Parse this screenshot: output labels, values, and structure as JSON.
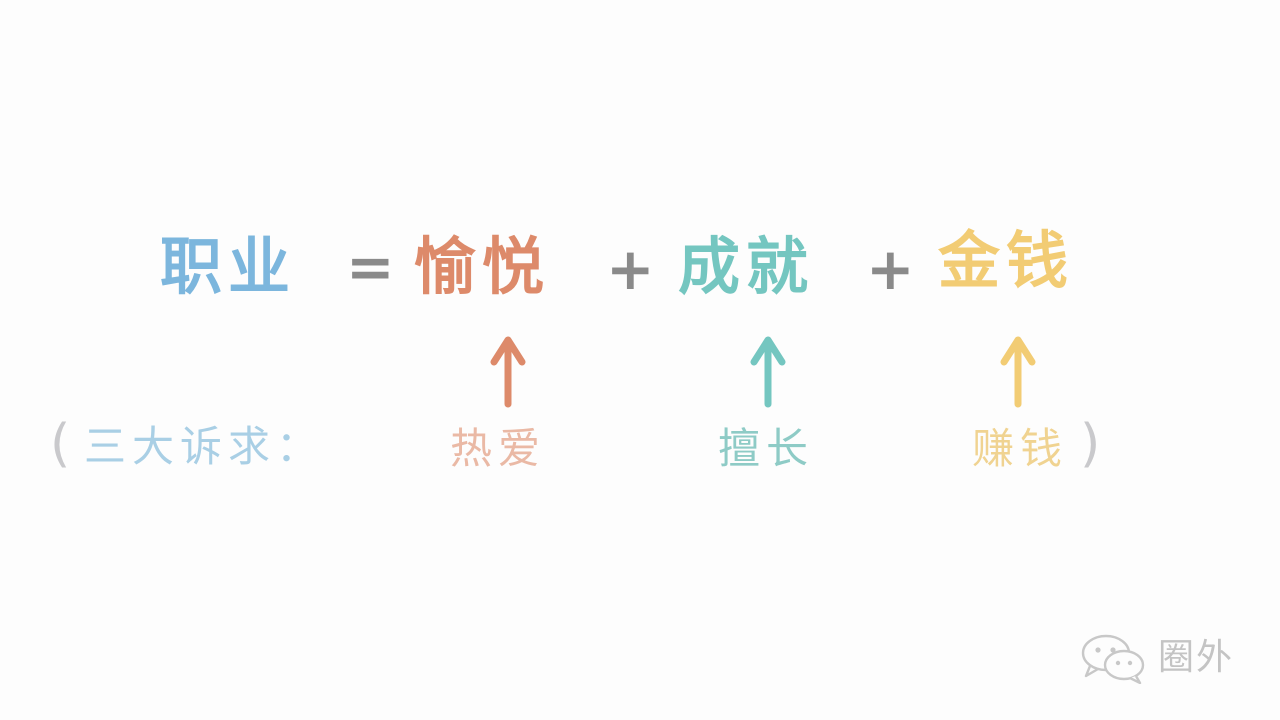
{
  "equation": {
    "career": "职业",
    "equals": "=",
    "joy": "愉悦",
    "plus_1": "+",
    "achievement": "成就",
    "plus_2": "+",
    "money": "金钱"
  },
  "demands": {
    "open_paren": "(",
    "label": "三大诉求：",
    "love": "热爱",
    "skill": "擅长",
    "earn": "赚钱",
    "close_paren": ")"
  },
  "brand": {
    "name": "圈外",
    "icon": "wechat-icon"
  },
  "colors": {
    "career": "#7cb6dd",
    "joy": "#dd8a6a",
    "achievement": "#74c6c0",
    "money": "#f2cc74",
    "operator": "#8a8a8a",
    "paren": "#c9c9cc",
    "label": "#a9cfe5",
    "love": "#eab9a5",
    "skill": "#8ecbc6",
    "earn": "#f0d391",
    "brand": "#c4c4c4"
  }
}
